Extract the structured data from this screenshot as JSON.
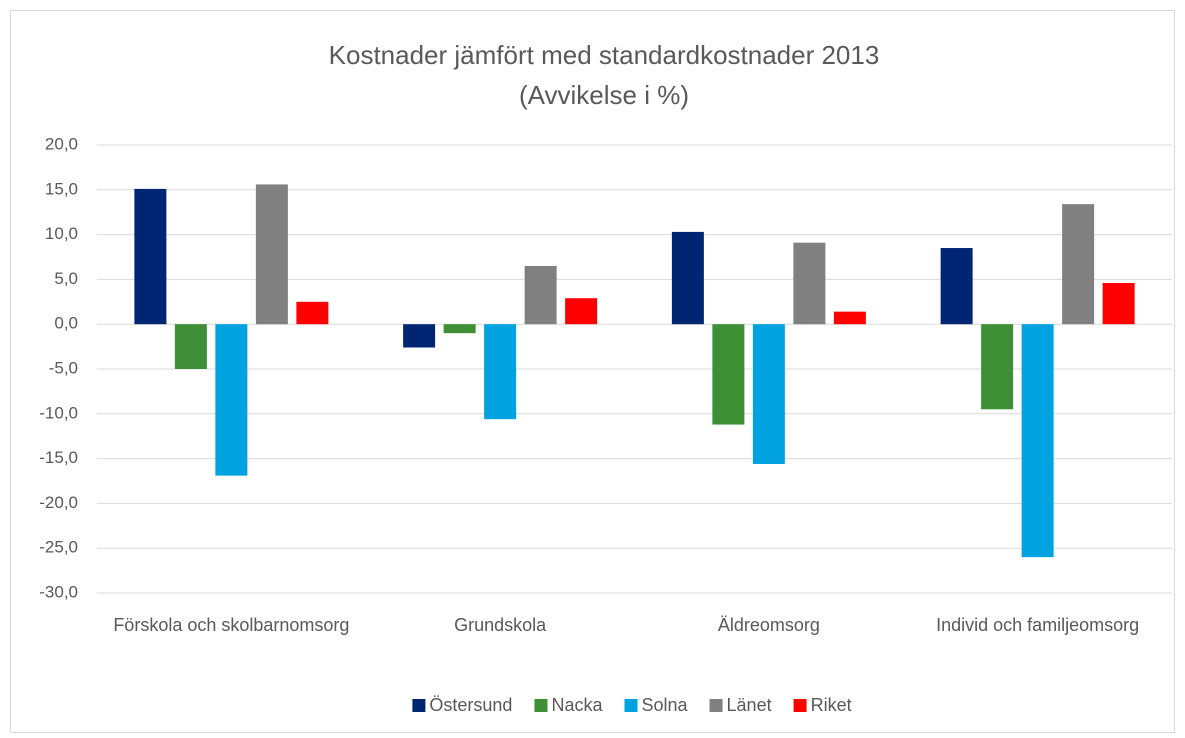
{
  "chart_data": {
    "type": "bar",
    "title": "Kostnader jämfört med standardkostnader 2013",
    "subtitle": "(Avvikelse i %)",
    "categories": [
      "Förskola och skolbarnomsorg",
      "Grundskola",
      "Äldreomsorg",
      "Individ och familjeomsorg"
    ],
    "series": [
      {
        "name": "Östersund",
        "color": "#002673",
        "values": [
          15.1,
          -2.6,
          10.3,
          8.5
        ]
      },
      {
        "name": "Nacka",
        "color": "#3e8f36",
        "values": [
          -5.0,
          -1.0,
          -11.2,
          -9.5
        ]
      },
      {
        "name": "Solna",
        "color": "#00a2e0",
        "values": [
          -16.9,
          -10.6,
          -15.6,
          -26.0
        ]
      },
      {
        "name": "Länet",
        "color": "#808080",
        "values": [
          15.6,
          6.5,
          9.1,
          13.4
        ]
      },
      {
        "name": "Riket",
        "color": "#ff0000",
        "values": [
          2.5,
          2.9,
          1.4,
          4.6
        ]
      }
    ],
    "ylim": [
      -30,
      20
    ],
    "yticks": [
      {
        "value": -30,
        "label": "-30,0"
      },
      {
        "value": -25,
        "label": "-25,0"
      },
      {
        "value": -20,
        "label": "-20,0"
      },
      {
        "value": -15,
        "label": "-15,0"
      },
      {
        "value": -10,
        "label": "-10,0"
      },
      {
        "value": -5,
        "label": "-5,0"
      },
      {
        "value": 0,
        "label": "0,0"
      },
      {
        "value": 5,
        "label": "5,0"
      },
      {
        "value": 10,
        "label": "10,0"
      },
      {
        "value": 15,
        "label": "15,0"
      },
      {
        "value": 20,
        "label": "20,0"
      }
    ],
    "grid": true,
    "legend": "bottom"
  }
}
